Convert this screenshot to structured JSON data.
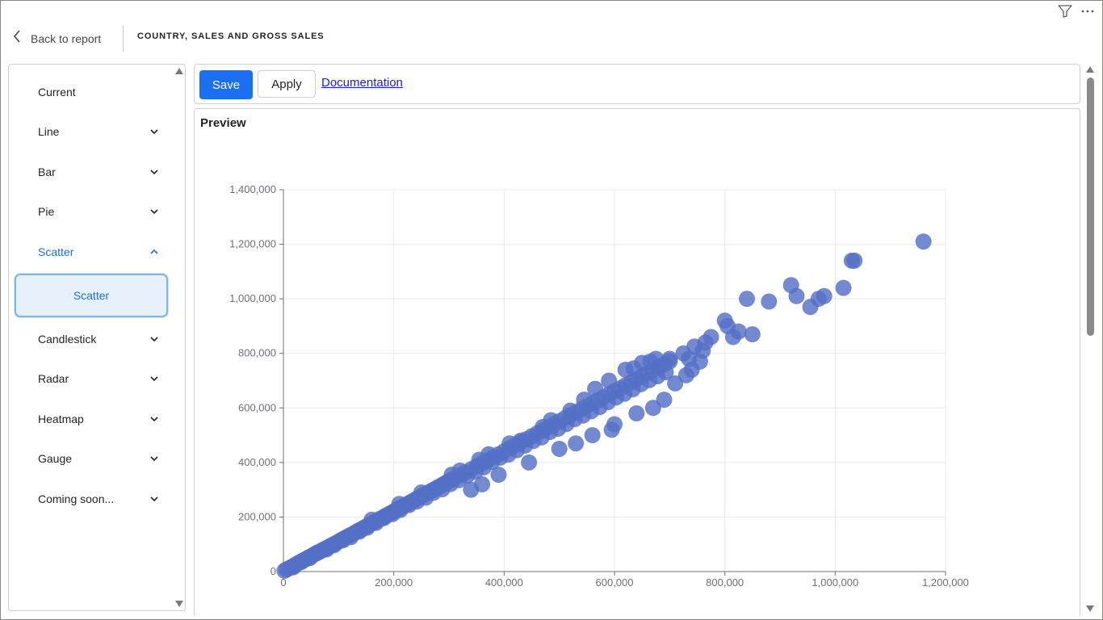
{
  "header": {
    "back_label": "Back to report",
    "page_title": "COUNTRY, SALES AND GROSS SALES"
  },
  "top_icons": [
    "filter-icon",
    "more-options-icon"
  ],
  "sidebar": {
    "items": [
      {
        "label": "Current",
        "expandable": false
      },
      {
        "label": "Line",
        "expandable": true,
        "expanded": false
      },
      {
        "label": "Bar",
        "expandable": true,
        "expanded": false
      },
      {
        "label": "Pie",
        "expandable": true,
        "expanded": false
      },
      {
        "label": "Scatter",
        "expandable": true,
        "expanded": true
      },
      {
        "label": "Candlestick",
        "expandable": true,
        "expanded": false
      },
      {
        "label": "Radar",
        "expandable": true,
        "expanded": false
      },
      {
        "label": "Heatmap",
        "expandable": true,
        "expanded": false
      },
      {
        "label": "Gauge",
        "expandable": true,
        "expanded": false
      },
      {
        "label": "Coming soon...",
        "expandable": true,
        "expanded": false
      }
    ],
    "sub_item": {
      "label": "Scatter",
      "selected": true
    }
  },
  "toolbar": {
    "save_label": "Save",
    "apply_label": "Apply",
    "doc_label": "Documentation"
  },
  "preview": {
    "title": "Preview"
  },
  "colors": {
    "accent": "#1a6ff2",
    "active_nav": "#1b6fdb",
    "point": "#5470c6",
    "link": "#1a1aee"
  },
  "chart_data": {
    "type": "scatter",
    "title": "",
    "xlabel": "",
    "ylabel": "",
    "xlim": [
      0,
      1200000
    ],
    "ylim": [
      0,
      1400000
    ],
    "x_ticks": [
      0,
      200000,
      400000,
      600000,
      800000,
      1000000,
      1200000
    ],
    "y_ticks": [
      0,
      200000,
      400000,
      600000,
      800000,
      1000000,
      1200000,
      1400000
    ],
    "x_tick_labels": [
      "0",
      "200,000",
      "400,000",
      "600,000",
      "800,000",
      "1,000,000",
      "1,200,000"
    ],
    "y_tick_labels": [
      "0",
      "200,000",
      "400,000",
      "600,000",
      "800,000",
      "1,000,000",
      "1,200,000",
      "1,400,000"
    ],
    "grid": true,
    "legend": "none",
    "series": [
      {
        "color": "#5470c6",
        "points": [
          [
            2000,
            3000
          ],
          [
            6000,
            8000
          ],
          [
            10000,
            12000
          ],
          [
            15000,
            17000
          ],
          [
            20000,
            23000
          ],
          [
            25000,
            29000
          ],
          [
            30000,
            34000
          ],
          [
            35000,
            40000
          ],
          [
            40000,
            45000
          ],
          [
            45000,
            51000
          ],
          [
            50000,
            56000
          ],
          [
            55000,
            62000
          ],
          [
            60000,
            67000
          ],
          [
            65000,
            72000
          ],
          [
            70000,
            78000
          ],
          [
            75000,
            83000
          ],
          [
            80000,
            88000
          ],
          [
            85000,
            94000
          ],
          [
            90000,
            99000
          ],
          [
            95000,
            104000
          ],
          [
            100000,
            110000
          ],
          [
            105000,
            116000
          ],
          [
            110000,
            121000
          ],
          [
            115000,
            127000
          ],
          [
            120000,
            132000
          ],
          [
            125000,
            137000
          ],
          [
            130000,
            143000
          ],
          [
            135000,
            149000
          ],
          [
            140000,
            154000
          ],
          [
            145000,
            159000
          ],
          [
            150000,
            165000
          ],
          [
            155000,
            171000
          ],
          [
            160000,
            176000
          ],
          [
            165000,
            182000
          ],
          [
            170000,
            188000
          ],
          [
            175000,
            193000
          ],
          [
            180000,
            198000
          ],
          [
            185000,
            204000
          ],
          [
            190000,
            209000
          ],
          [
            195000,
            215000
          ],
          [
            200000,
            220000
          ],
          [
            205000,
            226000
          ],
          [
            210000,
            232000
          ],
          [
            215000,
            237000
          ],
          [
            220000,
            242000
          ],
          [
            225000,
            248000
          ],
          [
            230000,
            254000
          ],
          [
            235000,
            259000
          ],
          [
            240000,
            265000
          ],
          [
            245000,
            270000
          ],
          [
            250000,
            276000
          ],
          [
            255000,
            281000
          ],
          [
            260000,
            287000
          ],
          [
            265000,
            292000
          ],
          [
            270000,
            298000
          ],
          [
            275000,
            303000
          ],
          [
            280000,
            309000
          ],
          [
            285000,
            314000
          ],
          [
            290000,
            320000
          ],
          [
            295000,
            326000
          ],
          [
            300000,
            331000
          ],
          [
            305000,
            337000
          ],
          [
            310000,
            342000
          ],
          [
            320000,
            353000
          ],
          [
            330000,
            364000
          ],
          [
            340000,
            375000
          ],
          [
            350000,
            386000
          ],
          [
            360000,
            397000
          ],
          [
            370000,
            408000
          ],
          [
            380000,
            419000
          ],
          [
            390000,
            430000
          ],
          [
            400000,
            441000
          ],
          [
            410000,
            452000
          ],
          [
            420000,
            463000
          ],
          [
            430000,
            474000
          ],
          [
            440000,
            485000
          ],
          [
            450000,
            496000
          ],
          [
            460000,
            507000
          ],
          [
            470000,
            518000
          ],
          [
            480000,
            529000
          ],
          [
            490000,
            540000
          ],
          [
            500000,
            551000
          ],
          [
            510000,
            562000
          ],
          [
            520000,
            573000
          ],
          [
            530000,
            584000
          ],
          [
            540000,
            595000
          ],
          [
            550000,
            606000
          ],
          [
            560000,
            617000
          ],
          [
            570000,
            628000
          ],
          [
            580000,
            639000
          ],
          [
            590000,
            650000
          ],
          [
            600000,
            661000
          ],
          [
            610000,
            672000
          ],
          [
            620000,
            683000
          ],
          [
            630000,
            694000
          ],
          [
            640000,
            705000
          ],
          [
            650000,
            716000
          ],
          [
            660000,
            727000
          ],
          [
            670000,
            738000
          ],
          [
            680000,
            749000
          ],
          [
            690000,
            760000
          ],
          [
            700000,
            771000
          ],
          [
            18000,
            16000
          ],
          [
            33000,
            36000
          ],
          [
            48000,
            50000
          ],
          [
            62000,
            70000
          ],
          [
            78000,
            81000
          ],
          [
            92000,
            97000
          ],
          [
            108000,
            115000
          ],
          [
            122000,
            126000
          ],
          [
            138000,
            147000
          ],
          [
            152000,
            161000
          ],
          [
            168000,
            179000
          ],
          [
            182000,
            196000
          ],
          [
            198000,
            211000
          ],
          [
            212000,
            226000
          ],
          [
            228000,
            244000
          ],
          [
            242000,
            257000
          ],
          [
            258000,
            271000
          ],
          [
            272000,
            289000
          ],
          [
            288000,
            302000
          ],
          [
            303000,
            321000
          ],
          [
            318000,
            335000
          ],
          [
            333000,
            352000
          ],
          [
            348000,
            367000
          ],
          [
            363000,
            382000
          ],
          [
            378000,
            402000
          ],
          [
            393000,
            418000
          ],
          [
            408000,
            429000
          ],
          [
            423000,
            445000
          ],
          [
            438000,
            462000
          ],
          [
            453000,
            479000
          ],
          [
            468000,
            492000
          ],
          [
            483000,
            512000
          ],
          [
            498000,
            524000
          ],
          [
            513000,
            541000
          ],
          [
            528000,
            559000
          ],
          [
            543000,
            572000
          ],
          [
            558000,
            588000
          ],
          [
            573000,
            603000
          ],
          [
            588000,
            621000
          ],
          [
            603000,
            638000
          ],
          [
            618000,
            652000
          ],
          [
            633000,
            668000
          ],
          [
            648000,
            687000
          ],
          [
            663000,
            702000
          ],
          [
            678000,
            716000
          ],
          [
            693000,
            731000
          ],
          [
            160000,
            190000
          ],
          [
            210000,
            248000
          ],
          [
            250000,
            290000
          ],
          [
            305000,
            355000
          ],
          [
            320000,
            370000
          ],
          [
            355000,
            410000
          ],
          [
            372000,
            430000
          ],
          [
            410000,
            470000
          ],
          [
            430000,
            480000
          ],
          [
            470000,
            530000
          ],
          [
            485000,
            555000
          ],
          [
            520000,
            590000
          ],
          [
            545000,
            630000
          ],
          [
            565000,
            670000
          ],
          [
            590000,
            700000
          ],
          [
            620000,
            740000
          ],
          [
            635000,
            745000
          ],
          [
            650000,
            765000
          ],
          [
            665000,
            770000
          ],
          [
            675000,
            780000
          ],
          [
            700000,
            780000
          ],
          [
            725000,
            800000
          ],
          [
            745000,
            825000
          ],
          [
            735000,
            780000
          ],
          [
            340000,
            300000
          ],
          [
            360000,
            320000
          ],
          [
            390000,
            355000
          ],
          [
            445000,
            400000
          ],
          [
            500000,
            450000
          ],
          [
            530000,
            470000
          ],
          [
            560000,
            500000
          ],
          [
            595000,
            520000
          ],
          [
            600000,
            540000
          ],
          [
            640000,
            580000
          ],
          [
            670000,
            600000
          ],
          [
            690000,
            630000
          ],
          [
            710000,
            690000
          ],
          [
            730000,
            720000
          ],
          [
            740000,
            740000
          ],
          [
            755000,
            770000
          ],
          [
            765000,
            840000
          ],
          [
            775000,
            860000
          ],
          [
            760000,
            810000
          ],
          [
            800000,
            920000
          ],
          [
            805000,
            900000
          ],
          [
            815000,
            860000
          ],
          [
            825000,
            880000
          ],
          [
            840000,
            1000000
          ],
          [
            850000,
            870000
          ],
          [
            880000,
            990000
          ],
          [
            920000,
            1050000
          ],
          [
            930000,
            1010000
          ],
          [
            955000,
            970000
          ],
          [
            970000,
            1000000
          ],
          [
            980000,
            1010000
          ],
          [
            1015000,
            1040000
          ],
          [
            1030000,
            1140000
          ],
          [
            1035000,
            1140000
          ],
          [
            1160000,
            1210000
          ]
        ]
      }
    ]
  }
}
